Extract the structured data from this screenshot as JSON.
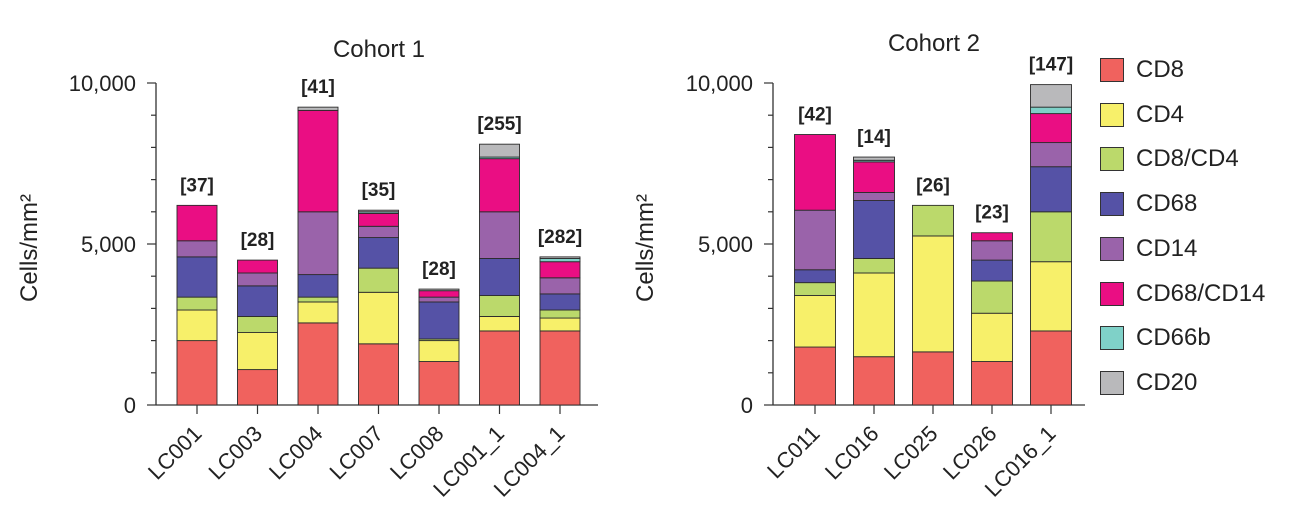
{
  "chart_data": {
    "type": "bar",
    "stacked": true,
    "ylabel": "Cells/mm²",
    "ylim": [
      0,
      10000
    ],
    "yticks": [
      "0",
      "5,000",
      "10,000"
    ],
    "ytick_values": [
      0,
      5000,
      10000
    ],
    "legend_position": "right",
    "series_names": [
      "CD8",
      "CD4",
      "CD8/CD4",
      "CD68",
      "CD14",
      "CD68/CD14",
      "CD66b",
      "CD20"
    ],
    "colors": {
      "CD8": "#f0625e",
      "CD4": "#f7f06a",
      "CD8/CD4": "#bbd96b",
      "CD68": "#5552a6",
      "CD14": "#9a63aa",
      "CD68/CD14": "#ea0e83",
      "CD66b": "#7fd1c8",
      "CD20": "#b9b9bb"
    },
    "panels": [
      {
        "title": "Cohort 1",
        "categories": [
          "LC001",
          "LC003",
          "LC004",
          "LC007",
          "LC008",
          "LC001_1",
          "LC004_1"
        ],
        "bar_labels": [
          "[37]",
          "[28]",
          "[41]",
          "[35]",
          "[28]",
          "[255]",
          "[282]"
        ],
        "series": [
          {
            "name": "CD8",
            "values": [
              2000,
              1100,
              2550,
              1900,
              1350,
              2300,
              2300
            ]
          },
          {
            "name": "CD4",
            "values": [
              950,
              1150,
              650,
              1600,
              650,
              450,
              400
            ]
          },
          {
            "name": "CD8/CD4",
            "values": [
              400,
              500,
              150,
              750,
              50,
              650,
              250
            ]
          },
          {
            "name": "CD68",
            "values": [
              1250,
              950,
              700,
              950,
              1150,
              1150,
              500
            ]
          },
          {
            "name": "CD14",
            "values": [
              500,
              400,
              1950,
              350,
              150,
              1450,
              500
            ]
          },
          {
            "name": "CD68/CD14",
            "values": [
              1100,
              400,
              3150,
              400,
              200,
              1650,
              500
            ]
          },
          {
            "name": "CD66b",
            "values": [
              0,
              0,
              0,
              50,
              0,
              50,
              100
            ]
          },
          {
            "name": "CD20",
            "values": [
              0,
              0,
              100,
              50,
              50,
              400,
              50
            ]
          }
        ]
      },
      {
        "title": "Cohort 2",
        "categories": [
          "LC011",
          "LC016",
          "LC025",
          "LC026",
          "LC016_1"
        ],
        "bar_labels": [
          "[42]",
          "[14]",
          "[26]",
          "[23]",
          "[147]"
        ],
        "series": [
          {
            "name": "CD8",
            "values": [
              1800,
              1500,
              1650,
              1350,
              2300
            ]
          },
          {
            "name": "CD4",
            "values": [
              1600,
              2600,
              3600,
              1500,
              2150
            ]
          },
          {
            "name": "CD8/CD4",
            "values": [
              400,
              450,
              950,
              1000,
              1550
            ]
          },
          {
            "name": "CD68",
            "values": [
              400,
              1800,
              0,
              650,
              1400
            ]
          },
          {
            "name": "CD14",
            "values": [
              1850,
              250,
              0,
              600,
              750
            ]
          },
          {
            "name": "CD68/CD14",
            "values": [
              2350,
              950,
              0,
              250,
              900
            ]
          },
          {
            "name": "CD66b",
            "values": [
              0,
              50,
              0,
              0,
              200
            ]
          },
          {
            "name": "CD20",
            "values": [
              0,
              100,
              0,
              0,
              700
            ]
          }
        ]
      }
    ]
  }
}
